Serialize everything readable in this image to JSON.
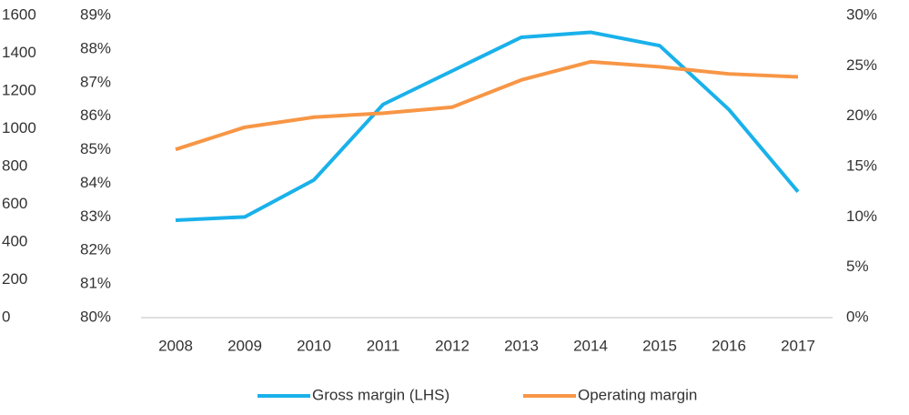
{
  "chart_data": {
    "type": "line",
    "categories": [
      "2008",
      "2009",
      "2010",
      "2011",
      "2012",
      "2013",
      "2014",
      "2015",
      "2016",
      "2017"
    ],
    "series": [
      {
        "name": "Gross margin (LHS)",
        "color": "#1ab1ea",
        "axis": "y",
        "values": [
          82.9,
          83.0,
          84.1,
          86.35,
          87.35,
          88.35,
          88.5,
          88.1,
          86.2,
          83.75
        ]
      },
      {
        "name": "Operating margin",
        "color": "#f79646",
        "axis": "y2",
        "values": [
          16.7,
          18.9,
          19.9,
          20.3,
          20.9,
          23.6,
          25.4,
          24.9,
          24.2,
          23.9
        ]
      }
    ],
    "ylim": [
      80,
      89
    ],
    "yticks": [
      {
        "value": 80,
        "label": "80%"
      },
      {
        "value": 81,
        "label": "81%"
      },
      {
        "value": 82,
        "label": "82%"
      },
      {
        "value": 83,
        "label": "83%"
      },
      {
        "value": 84,
        "label": "84%"
      },
      {
        "value": 85,
        "label": "85%"
      },
      {
        "value": 86,
        "label": "86%"
      },
      {
        "value": 87,
        "label": "87%"
      },
      {
        "value": 88,
        "label": "88%"
      },
      {
        "value": 89,
        "label": "89%"
      }
    ],
    "y2lim": [
      0,
      30
    ],
    "y2ticks": [
      {
        "value": 0,
        "label": "0%"
      },
      {
        "value": 5,
        "label": "5%"
      },
      {
        "value": 10,
        "label": "10%"
      },
      {
        "value": 15,
        "label": "15%"
      },
      {
        "value": 20,
        "label": "20%"
      },
      {
        "value": 25,
        "label": "25%"
      },
      {
        "value": 30,
        "label": "30%"
      }
    ],
    "y3lim": [
      0,
      1600
    ],
    "y3ticks": [
      0,
      200,
      400,
      600,
      800,
      1000,
      1200,
      1400,
      1600
    ],
    "legend": "bottom"
  }
}
